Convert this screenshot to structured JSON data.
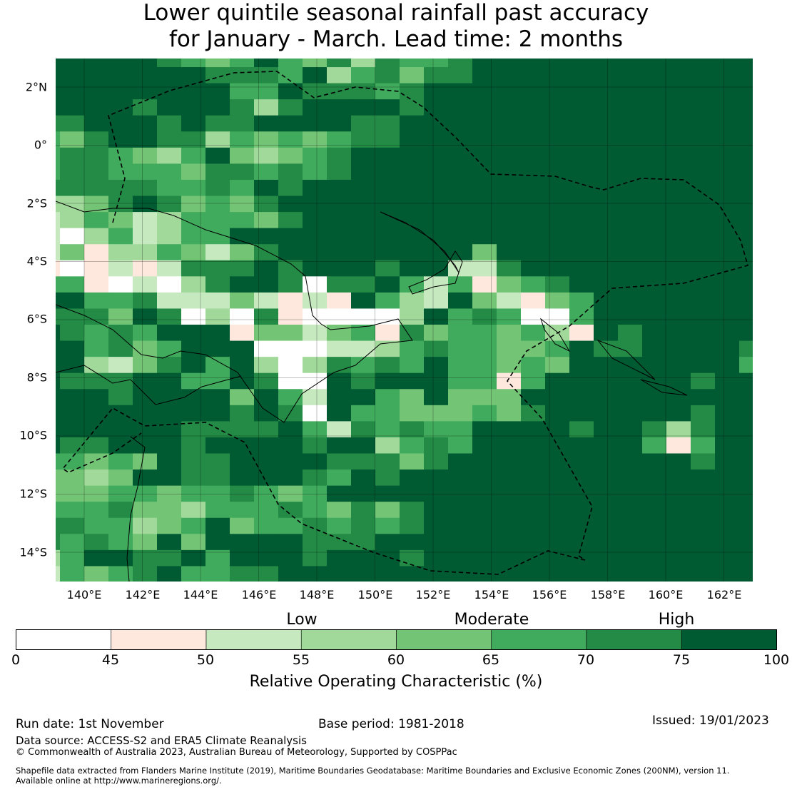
{
  "title": {
    "line1": "Lower quintile seasonal rainfall past accuracy",
    "line2": "for January - March. Lead time: 2 months"
  },
  "map": {
    "lat_labels": [
      "2°N",
      "0°",
      "2°S",
      "4°S",
      "6°S",
      "8°S",
      "10°S",
      "12°S",
      "14°S"
    ],
    "lat_values": [
      2,
      0,
      -2,
      -4,
      -6,
      -8,
      -10,
      -12,
      -14
    ],
    "lon_labels": [
      "140°E",
      "142°E",
      "144°E",
      "146°E",
      "148°E",
      "150°E",
      "152°E",
      "154°E",
      "156°E",
      "158°E",
      "160°E",
      "162°E"
    ],
    "lon_values": [
      140,
      142,
      144,
      146,
      148,
      150,
      152,
      154,
      156,
      158,
      160,
      162
    ],
    "grid_rows": [
      "777776545754636556777777777777",
      "777777766657356466777777777777",
      "777777775576665677777777777777",
      "777767776367777677777777777777",
      "667776766777766777777777777777",
      "546776635454566777777777777777",
      "566543574345677777777777777777",
      "566555466565677777777777777777",
      "666665565767777777777777777777",
      "334676454677777777777777777777",
      "235423555467777777777777777777",
      "203523557777777777777777777777",
      "241335424677777777477777777777",
      "101212666767776772267777777777",
      "551020367760667525145677777777",
      "775562224212175327421457777777",
      "666476030610000375650057777777",
      "765657771442451645545317677777",
      "775645777000223565544576677776",
      "773246757303656575545477777775",
      "766677557600767775515777777677",
      "777677774752775474447777777777",
      "777777776760755444546777777677",
      "777777666675265655777767763677",
      "766777677776773565777777751577",
      "554547667777666467777777777677",
      "443477667776576777777777777777",
      "444554556545777777777777777777",
      "555644355565464677777777777777",
      "665534574556565677777777777777",
      "656547477776667777777777777777",
      "357766757776777677777777777777",
      "254567556677777777777777777777"
    ]
  },
  "colorbar": {
    "title": "Relative Operating Characteristic (%)",
    "ticks": [
      "0",
      "45",
      "50",
      "55",
      "60",
      "65",
      "70",
      "75",
      "100"
    ],
    "categories": [
      "Low",
      "Moderate",
      "High"
    ],
    "colors": [
      "#ffffff",
      "#fee8de",
      "#c7e9c0",
      "#a1d99b",
      "#74c476",
      "#41ab5d",
      "#238b45",
      "#005a32"
    ]
  },
  "footer": {
    "run_date": "Run date: 1st November",
    "base_period": "Base period: 1981-2018",
    "issued": "Issued: 19/01/2023",
    "data_source": "Data source: ACCESS-S2 and ERA5 Climate Reanalysis",
    "copyright": "© Commonwealth of Australia 2023, Australian Bureau of Meteorology, Supported by COSPPac",
    "shapefile_line1": "Shapefile data extracted from Flanders Marine Institute (2019), Maritime Boundaries Geodatabase: Maritime Boundaries and Exclusive Economic Zones (200NM), version 11.",
    "shapefile_line2": "Available online at http://www.marineregions.org/."
  }
}
